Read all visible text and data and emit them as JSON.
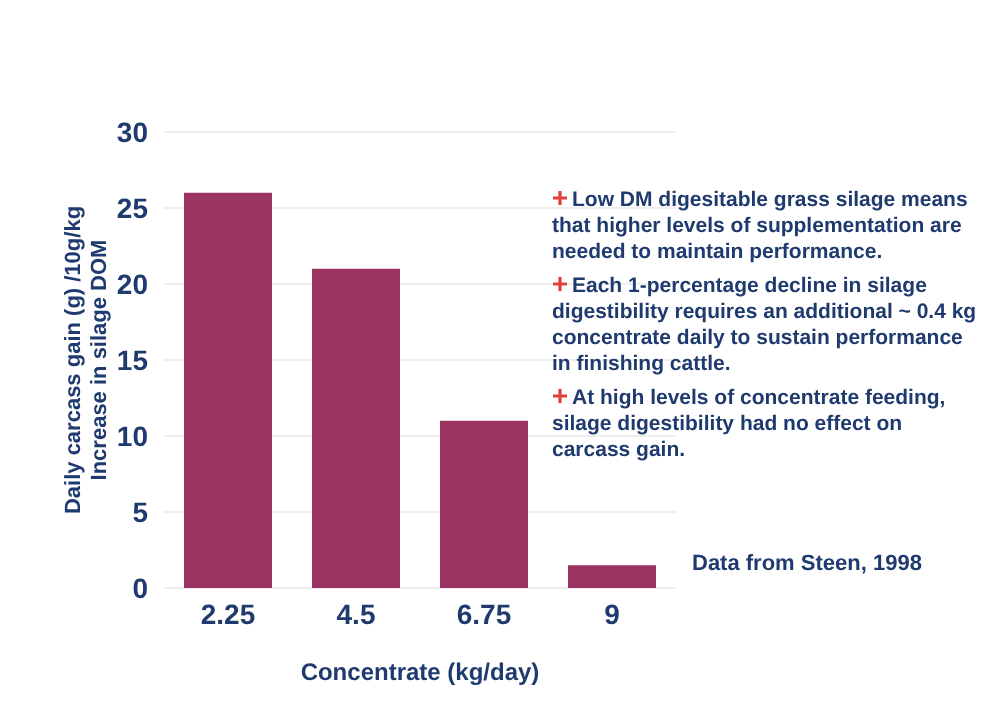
{
  "chart_data": {
    "type": "bar",
    "xlabel": "Concentrate (kg/day)",
    "ylabel": "Daily carcass gain (g) /10g/kg Increase in silage DOM",
    "categories": [
      "2.25",
      "4.5",
      "6.75",
      "9"
    ],
    "values": [
      26,
      21,
      11,
      1.5
    ],
    "color": "#9b3462",
    "ylim": [
      0,
      30
    ],
    "yticks": [
      0,
      5,
      10,
      15,
      20,
      25,
      30
    ],
    "grid": "y",
    "annotations": [
      "Low DM digesitable grass silage means that higher levels of supplementation are needed to maintain performance.",
      "Each 1-percentage decline in silage digestibility requires an additional ~ 0.4 kg concentrate daily to sustain performance in finishing cattle.",
      "At high levels of concentrate feeding, silage digestibility had no effect on carcass gain.",
      "Data from Steen, 1998"
    ]
  }
}
